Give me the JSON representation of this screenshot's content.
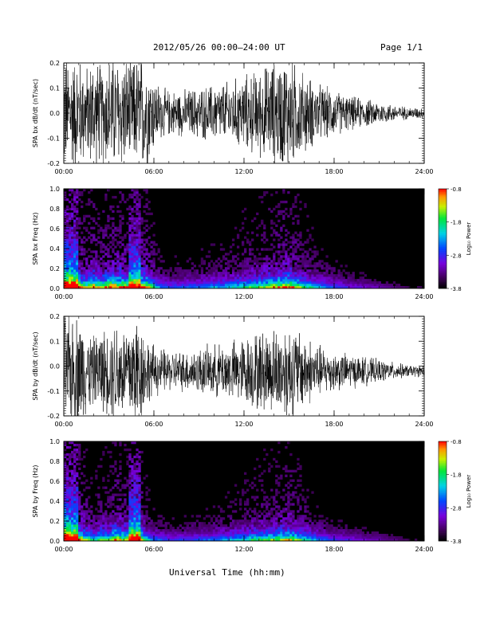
{
  "header": {
    "title": "2012/05/26  00:00–24:00 UT",
    "page": "Page 1/1"
  },
  "footer": {
    "xlabel": "Universal Time (hh:mm)"
  },
  "colorbar": {
    "label": "Log₁₀ Power",
    "ticks": [
      "-0.8",
      "-1.8",
      "-2.8",
      "-3.8"
    ]
  },
  "chart_data": [
    {
      "type": "line",
      "ylabel": "SPA bx dB/dt (nT/sec)",
      "xlim": [
        "00:00",
        "24:00"
      ],
      "ylim": [
        -0.2,
        0.2
      ],
      "xticks": [
        "00:00",
        "06:00",
        "12:00",
        "18:00",
        "24:00"
      ],
      "yticks": [
        "0.2",
        "0.1",
        "0.0",
        "-0.1",
        "-0.2"
      ],
      "envelope": {
        "x_hours": [
          0,
          0.5,
          1,
          1.5,
          2,
          2.5,
          3,
          3.5,
          4,
          4.5,
          5,
          5.5,
          6,
          6.5,
          7,
          8,
          9,
          10,
          11,
          12,
          13,
          14,
          15,
          16,
          17,
          18,
          19,
          20,
          21,
          22,
          23,
          24
        ],
        "amplitude": [
          0.2,
          0.2,
          0.2,
          0.16,
          0.2,
          0.17,
          0.2,
          0.2,
          0.2,
          0.18,
          0.2,
          0.2,
          0.13,
          0.09,
          0.08,
          0.08,
          0.09,
          0.1,
          0.11,
          0.13,
          0.15,
          0.18,
          0.2,
          0.14,
          0.1,
          0.08,
          0.06,
          0.05,
          0.04,
          0.03,
          0.02,
          0.02
        ]
      }
    },
    {
      "type": "heatmap",
      "ylabel": "SPA bx Freq (Hz)",
      "xlim": [
        "00:00",
        "24:00"
      ],
      "ylim": [
        0,
        1.0
      ],
      "xticks": [
        "00:00",
        "06:00",
        "12:00",
        "18:00",
        "24:00"
      ],
      "yticks": [
        "1.0",
        "0.8",
        "0.6",
        "0.4",
        "0.2",
        "0.0"
      ],
      "colorbar_range": [
        -3.8,
        -0.8
      ]
    },
    {
      "type": "line",
      "ylabel": "SPA by dB/dt (nT/sec)",
      "xlim": [
        "00:00",
        "24:00"
      ],
      "ylim": [
        -0.2,
        0.2
      ],
      "xticks": [
        "00:00",
        "06:00",
        "12:00",
        "18:00",
        "24:00"
      ],
      "yticks": [
        "0.2",
        "0.1",
        "0.0",
        "-0.1",
        "-0.2"
      ],
      "offset": -0.02,
      "envelope": {
        "x_hours": [
          0,
          0.5,
          1,
          1.5,
          2,
          2.5,
          3,
          3.5,
          4,
          4.5,
          5,
          5.5,
          6,
          6.5,
          7,
          8,
          9,
          10,
          11,
          12,
          13,
          14,
          15,
          16,
          17,
          18,
          19,
          20,
          21,
          22,
          23,
          24
        ],
        "amplitude": [
          0.2,
          0.2,
          0.2,
          0.15,
          0.12,
          0.15,
          0.14,
          0.2,
          0.16,
          0.2,
          0.2,
          0.12,
          0.09,
          0.08,
          0.07,
          0.07,
          0.08,
          0.09,
          0.1,
          0.12,
          0.14,
          0.15,
          0.17,
          0.13,
          0.09,
          0.07,
          0.06,
          0.05,
          0.04,
          0.03,
          0.02,
          0.02
        ]
      }
    },
    {
      "type": "heatmap",
      "ylabel": "SPA by Freq (Hz)",
      "xlim": [
        "00:00",
        "24:00"
      ],
      "ylim": [
        0,
        1.0
      ],
      "xticks": [
        "00:00",
        "06:00",
        "12:00",
        "18:00",
        "24:00"
      ],
      "yticks": [
        "1.0",
        "0.8",
        "0.6",
        "0.4",
        "0.2",
        "0.0"
      ],
      "colorbar_range": [
        -3.8,
        -0.8
      ]
    }
  ]
}
